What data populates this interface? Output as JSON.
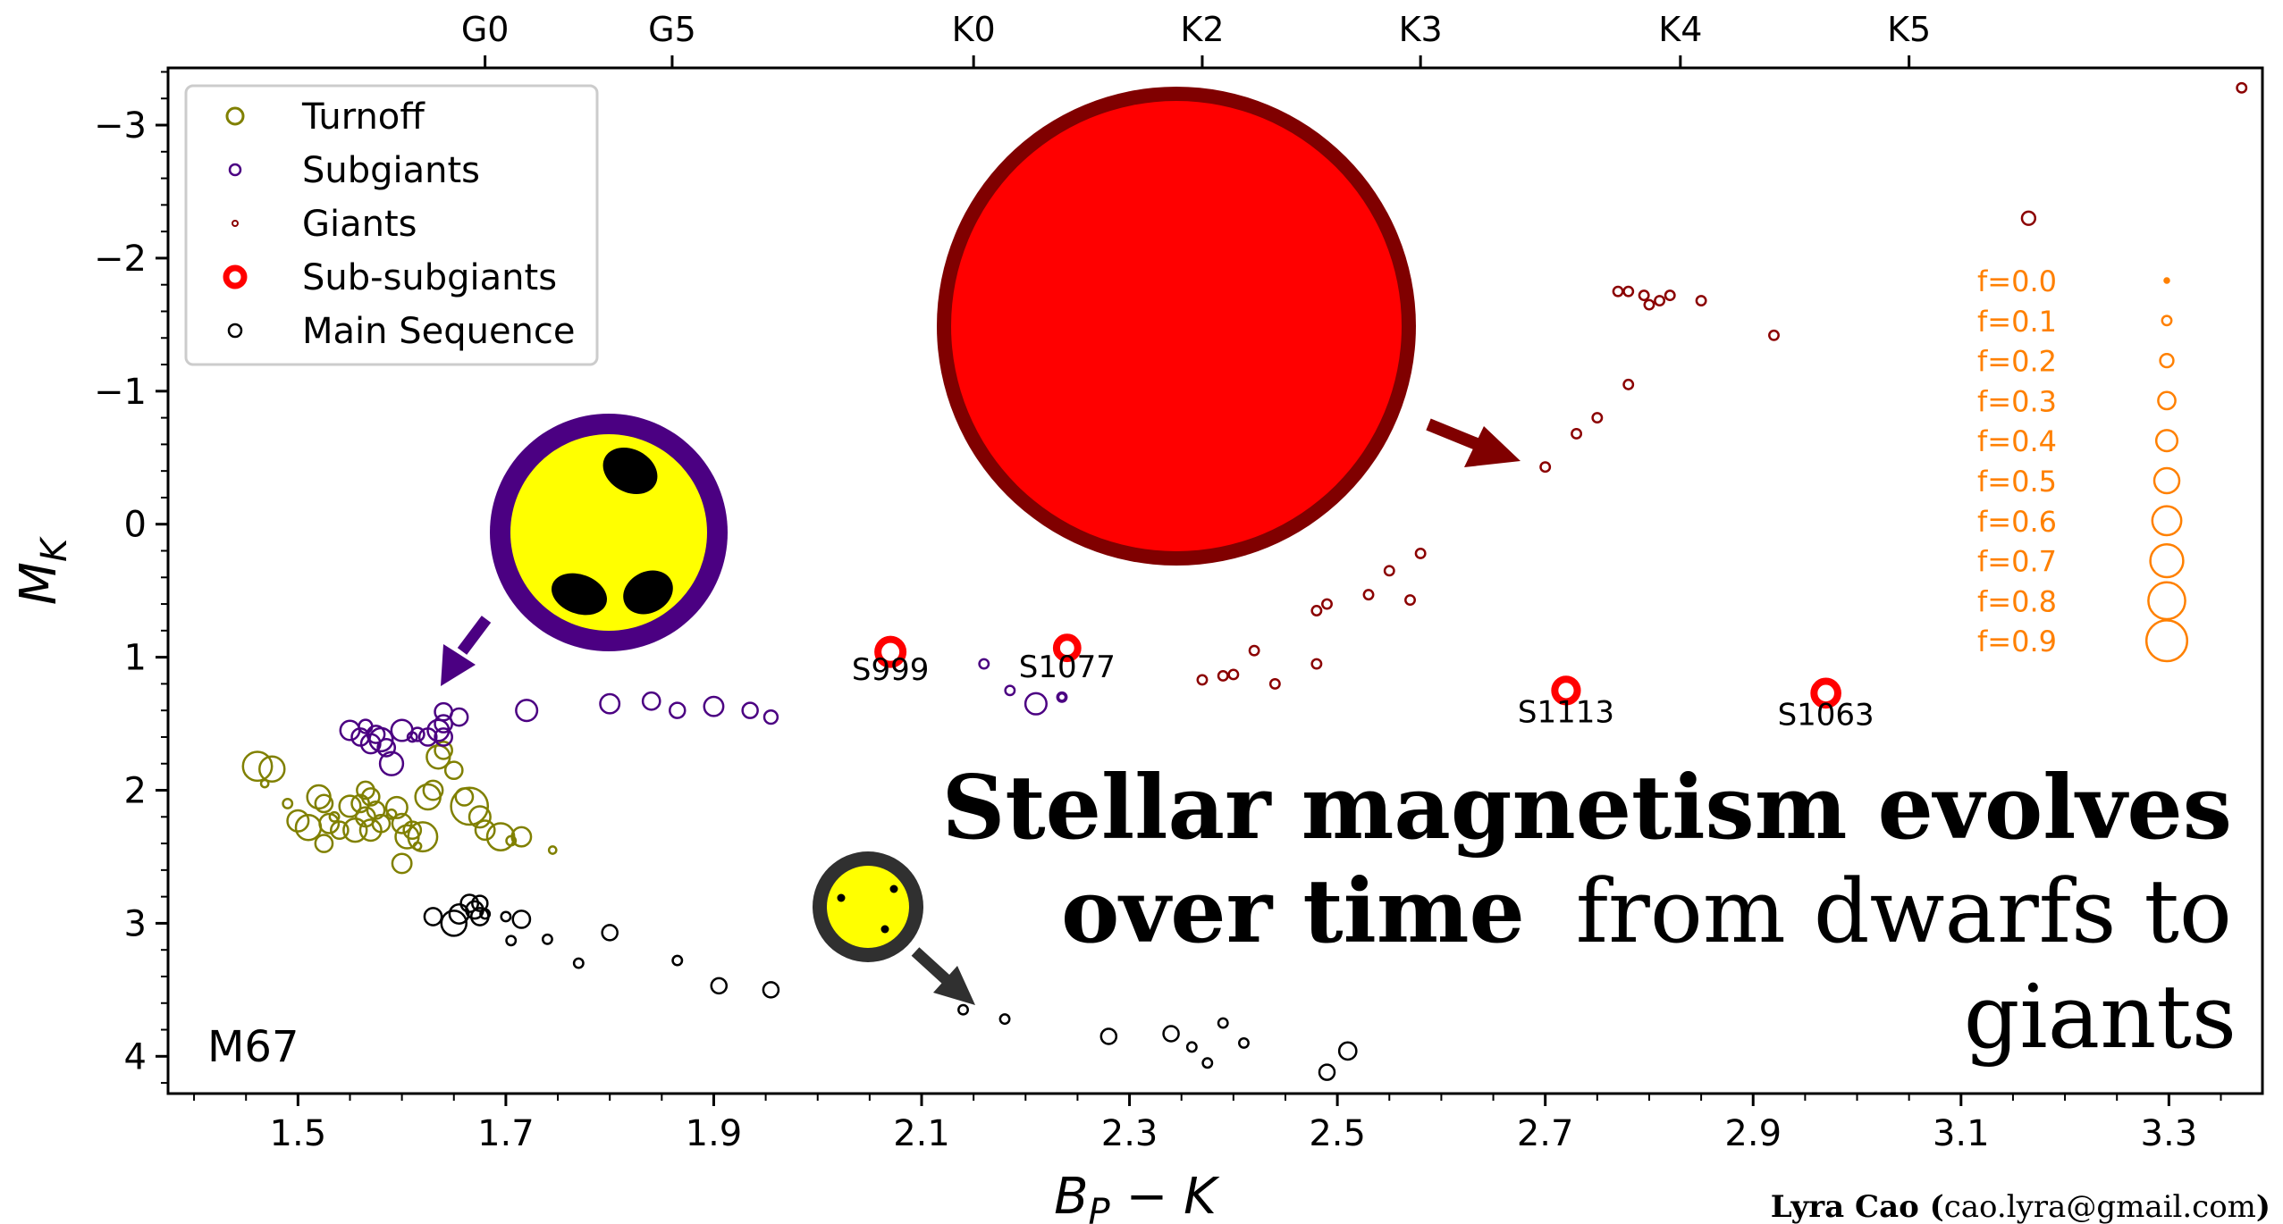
{
  "chart_data": {
    "type": "scatter",
    "xlabel_main": "B",
    "xlabel_sub": "P",
    "xlabel_rest": " − K",
    "ylabel_main": "M",
    "ylabel_sub": "K",
    "xlim": [
      1.375,
      3.39
    ],
    "ylim": [
      4.28,
      -3.43
    ],
    "y_inverted": true,
    "x_ticks": [
      "1.5",
      "1.7",
      "1.9",
      "2.1",
      "2.3",
      "2.5",
      "2.7",
      "2.9",
      "3.1",
      "3.3"
    ],
    "y_ticks": [
      "−3",
      "−2",
      "−1",
      "0",
      "1",
      "2",
      "3",
      "4"
    ],
    "top_axis": [
      {
        "label": "G0",
        "x": 1.68
      },
      {
        "label": "G5",
        "x": 1.86
      },
      {
        "label": "K0",
        "x": 2.15
      },
      {
        "label": "K2",
        "x": 2.37
      },
      {
        "label": "K3",
        "x": 2.58
      },
      {
        "label": "K4",
        "x": 2.83
      },
      {
        "label": "K5",
        "x": 3.05
      }
    ],
    "cluster_label": "M67",
    "legend_position": "top-left",
    "legend": [
      {
        "label": "Turnoff",
        "color": "#808000",
        "marker_r": 9,
        "stroke": 3
      },
      {
        "label": "Subgiants",
        "color": "#4b0082",
        "marker_r": 6,
        "stroke": 2.5
      },
      {
        "label": "Giants",
        "color": "#8b0000",
        "marker_r": 3,
        "stroke": 2
      },
      {
        "label": "Sub-subgiants",
        "color": "#ff0000",
        "marker_r": 10,
        "stroke": 7
      },
      {
        "label": "Main Sequence",
        "color": "#000000",
        "marker_r": 7,
        "stroke": 2.5
      }
    ],
    "size_key": {
      "color": "#ff8000",
      "labels": [
        "f=0.0",
        "f=0.1",
        "f=0.2",
        "f=0.3",
        "f=0.4",
        "f=0.5",
        "f=0.6",
        "f=0.7",
        "f=0.8",
        "f=0.9"
      ],
      "f": [
        0.0,
        0.1,
        0.2,
        0.3,
        0.4,
        0.5,
        0.6,
        0.7,
        0.8,
        0.9
      ]
    },
    "series": [
      {
        "name": "Turnoff",
        "color": "#808000",
        "points": [
          [
            1.461,
            1.82,
            0.6
          ],
          [
            1.475,
            1.84,
            0.5
          ],
          [
            1.468,
            1.95,
            0.05
          ],
          [
            1.49,
            2.1,
            0.1
          ],
          [
            1.5,
            2.23,
            0.4
          ],
          [
            1.51,
            2.28,
            0.5
          ],
          [
            1.52,
            2.05,
            0.45
          ],
          [
            1.525,
            2.1,
            0.3
          ],
          [
            1.53,
            2.25,
            0.35
          ],
          [
            1.525,
            2.4,
            0.3
          ],
          [
            1.535,
            2.2,
            0.1
          ],
          [
            1.54,
            2.3,
            0.3
          ],
          [
            1.55,
            2.12,
            0.4
          ],
          [
            1.555,
            2.3,
            0.45
          ],
          [
            1.56,
            2.1,
            0.3
          ],
          [
            1.565,
            2.2,
            0.35
          ],
          [
            1.57,
            2.3,
            0.4
          ],
          [
            1.575,
            2.15,
            0.3
          ],
          [
            1.565,
            2.0,
            0.3
          ],
          [
            1.57,
            2.05,
            0.3
          ],
          [
            1.58,
            2.25,
            0.3
          ],
          [
            1.59,
            2.18,
            0.1
          ],
          [
            1.595,
            2.13,
            0.4
          ],
          [
            1.6,
            2.25,
            0.35
          ],
          [
            1.605,
            2.35,
            0.45
          ],
          [
            1.61,
            2.3,
            0.3
          ],
          [
            1.615,
            2.42,
            0.05
          ],
          [
            1.62,
            2.35,
            0.6
          ],
          [
            1.6,
            2.55,
            0.35
          ],
          [
            1.625,
            2.05,
            0.5
          ],
          [
            1.63,
            2.0,
            0.35
          ],
          [
            1.635,
            1.75,
            0.45
          ],
          [
            1.64,
            1.7,
            0.3
          ],
          [
            1.65,
            1.85,
            0.3
          ],
          [
            1.66,
            2.05,
            0.3
          ],
          [
            1.665,
            2.12,
            0.8
          ],
          [
            1.675,
            2.2,
            0.4
          ],
          [
            1.68,
            2.3,
            0.35
          ],
          [
            1.695,
            2.35,
            0.55
          ],
          [
            1.705,
            2.38,
            0.1
          ],
          [
            1.715,
            2.35,
            0.35
          ],
          [
            1.745,
            2.45,
            0.05
          ]
        ]
      },
      {
        "name": "Subgiants",
        "color": "#4b0082",
        "points": [
          [
            1.55,
            1.55,
            0.35
          ],
          [
            1.56,
            1.6,
            0.3
          ],
          [
            1.565,
            1.52,
            0.2
          ],
          [
            1.57,
            1.65,
            0.35
          ],
          [
            1.575,
            1.58,
            0.3
          ],
          [
            1.58,
            1.62,
            0.45
          ],
          [
            1.585,
            1.68,
            0.3
          ],
          [
            1.59,
            1.8,
            0.45
          ],
          [
            1.6,
            1.55,
            0.4
          ],
          [
            1.61,
            1.6,
            0.1
          ],
          [
            1.615,
            1.58,
            0.2
          ],
          [
            1.625,
            1.6,
            0.3
          ],
          [
            1.635,
            1.55,
            0.4
          ],
          [
            1.64,
            1.6,
            0.3
          ],
          [
            1.64,
            1.5,
            0.3
          ],
          [
            1.64,
            1.41,
            0.3
          ],
          [
            1.655,
            1.45,
            0.3
          ],
          [
            1.72,
            1.4,
            0.4
          ],
          [
            1.8,
            1.35,
            0.35
          ],
          [
            1.84,
            1.33,
            0.3
          ],
          [
            1.865,
            1.4,
            0.25
          ],
          [
            1.9,
            1.37,
            0.35
          ],
          [
            1.935,
            1.4,
            0.25
          ],
          [
            1.955,
            1.45,
            0.2
          ],
          [
            2.16,
            1.05,
            0.1
          ],
          [
            2.185,
            1.25,
            0.1
          ],
          [
            2.21,
            1.35,
            0.4
          ],
          [
            2.235,
            1.3,
            0.1
          ],
          [
            2.235,
            1.3,
            0.05
          ]
        ]
      },
      {
        "name": "Giants",
        "color": "#8b0000",
        "points": [
          [
            2.37,
            1.17,
            0.1
          ],
          [
            2.39,
            1.14,
            0.1
          ],
          [
            2.4,
            1.13,
            0.1
          ],
          [
            2.44,
            1.2,
            0.1
          ],
          [
            2.42,
            0.95,
            0.1
          ],
          [
            2.48,
            1.05,
            0.1
          ],
          [
            2.48,
            0.65,
            0.1
          ],
          [
            2.49,
            0.6,
            0.1
          ],
          [
            2.53,
            0.53,
            0.1
          ],
          [
            2.55,
            0.35,
            0.1
          ],
          [
            2.57,
            0.57,
            0.1
          ],
          [
            2.58,
            0.22,
            0.1
          ],
          [
            2.7,
            -0.43,
            0.1
          ],
          [
            2.73,
            -0.68,
            0.1
          ],
          [
            2.75,
            -0.8,
            0.1
          ],
          [
            2.78,
            -1.05,
            0.1
          ],
          [
            2.77,
            -1.75,
            0.1
          ],
          [
            2.78,
            -1.75,
            0.1
          ],
          [
            2.795,
            -1.72,
            0.1
          ],
          [
            2.8,
            -1.65,
            0.1
          ],
          [
            2.81,
            -1.68,
            0.1
          ],
          [
            2.82,
            -1.72,
            0.1
          ],
          [
            2.85,
            -1.68,
            0.1
          ],
          [
            2.92,
            -1.42,
            0.1
          ],
          [
            3.165,
            -2.3,
            0.2
          ],
          [
            3.37,
            -3.28,
            0.1
          ]
        ]
      },
      {
        "name": "Sub-subgiants",
        "color": "#ff0000",
        "points": [
          [
            2.07,
            0.96,
            0.5
          ],
          [
            2.24,
            0.93,
            0.35
          ],
          [
            2.72,
            1.25,
            0.4
          ],
          [
            2.97,
            1.27,
            0.45
          ]
        ]
      },
      {
        "name": "Main Sequence",
        "color": "#000000",
        "points": [
          [
            1.63,
            2.95,
            0.3
          ],
          [
            1.65,
            3.0,
            0.5
          ],
          [
            1.665,
            2.85,
            0.3
          ],
          [
            1.67,
            2.9,
            0.3
          ],
          [
            1.655,
            2.93,
            0.35
          ],
          [
            1.675,
            2.95,
            0.3
          ],
          [
            1.675,
            2.85,
            0.25
          ],
          [
            1.68,
            2.93,
            0.1
          ],
          [
            1.7,
            2.95,
            0.1
          ],
          [
            1.705,
            3.13,
            0.1
          ],
          [
            1.715,
            2.97,
            0.3
          ],
          [
            1.74,
            3.12,
            0.1
          ],
          [
            1.77,
            3.3,
            0.1
          ],
          [
            1.8,
            3.07,
            0.25
          ],
          [
            1.865,
            3.28,
            0.1
          ],
          [
            1.905,
            3.47,
            0.25
          ],
          [
            1.955,
            3.5,
            0.25
          ],
          [
            2.14,
            3.65,
            0.1
          ],
          [
            2.18,
            3.72,
            0.1
          ],
          [
            2.28,
            3.85,
            0.25
          ],
          [
            2.34,
            3.83,
            0.25
          ],
          [
            2.36,
            3.93,
            0.1
          ],
          [
            2.375,
            4.05,
            0.1
          ],
          [
            2.39,
            3.75,
            0.1
          ],
          [
            2.41,
            3.9,
            0.1
          ],
          [
            2.49,
            4.12,
            0.25
          ],
          [
            2.51,
            3.96,
            0.3
          ]
        ]
      }
    ],
    "annotations": [
      {
        "text": "S999",
        "x": 2.07,
        "y": 1.17
      },
      {
        "text": "S1077",
        "x": 2.24,
        "y": 1.15
      },
      {
        "text": "S1113",
        "x": 2.72,
        "y": 1.49
      },
      {
        "text": "S1063",
        "x": 2.97,
        "y": 1.51
      }
    ]
  },
  "headline": {
    "line1_bold": "Stellar magnetism evolves",
    "line2_bold": "over time",
    "line2_regular": " from dwarfs to",
    "line3_regular": "giants"
  },
  "credit": {
    "name": "Lyra Cao",
    "email_open": " (",
    "email": "cao.lyra@gmail.com",
    "email_close": ")"
  },
  "colors": {
    "giant_dark": "#800000",
    "giant_fill": "#ff0000",
    "subgiant_ring": "#4b0082",
    "star_yellow": "#ffff00",
    "dwarf_ring": "#303030"
  },
  "icons": {
    "giant_star": "large-red-star-icon",
    "subgiant_star": "spotted-yellow-star-icon",
    "dwarf_star": "small-yellow-star-icon"
  }
}
